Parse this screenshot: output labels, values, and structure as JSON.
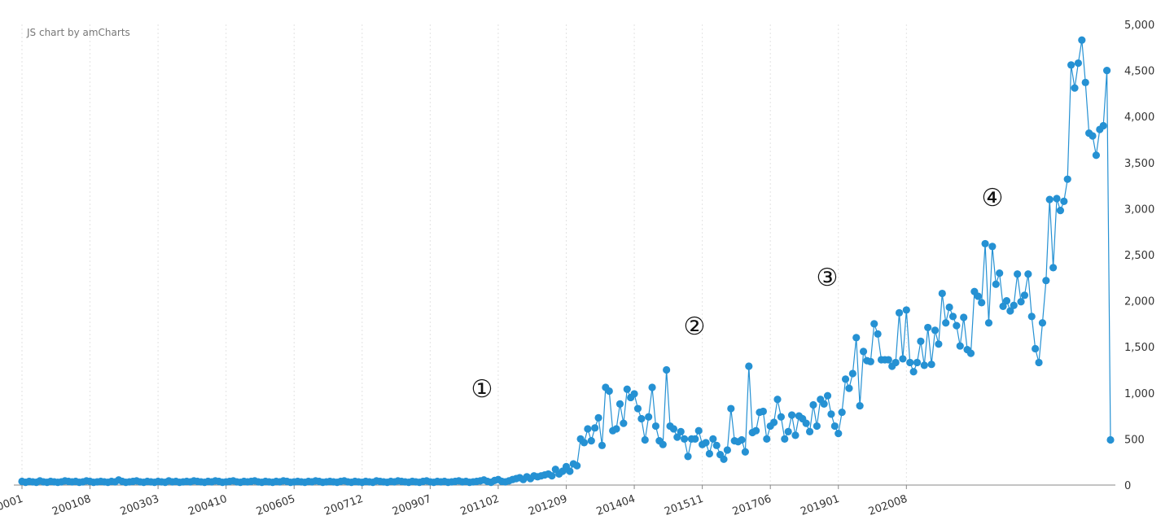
{
  "credit": "JS chart by amCharts",
  "colors": {
    "series": "#2591d3",
    "grid": "#e2e2e2",
    "axis": "#888888"
  },
  "chart_data": {
    "type": "line",
    "title": "",
    "xlabel": "",
    "ylabel": "",
    "ylim": [
      0,
      5000
    ],
    "y_axis_position": "right",
    "grid": "vertical dotted",
    "y_ticks": [
      "0",
      "500",
      "1,000",
      "1,500",
      "2,000",
      "2,500",
      "3,000",
      "3,500",
      "4,000",
      "4,500",
      "5,000"
    ],
    "x_ticks": [
      "200001",
      "200108",
      "200303",
      "200410",
      "200605",
      "200712",
      "200907",
      "201102",
      "201209",
      "201404",
      "201511",
      "201706",
      "201901",
      "202008"
    ],
    "start_period": "200001",
    "series": [
      {
        "values": [
          40,
          30,
          40,
          35,
          30,
          45,
          35,
          30,
          40,
          35,
          30,
          35,
          45,
          40,
          35,
          40,
          30,
          35,
          45,
          40,
          30,
          35,
          40,
          35,
          30,
          40,
          35,
          55,
          40,
          30,
          35,
          40,
          45,
          35,
          30,
          40,
          35,
          30,
          40,
          35,
          30,
          45,
          35,
          40,
          30,
          35,
          40,
          35,
          45,
          40,
          35,
          30,
          40,
          35,
          45,
          40,
          30,
          35,
          40,
          45,
          35,
          30,
          40,
          35,
          40,
          45,
          35,
          30,
          40,
          35,
          30,
          40,
          35,
          45,
          40,
          30,
          35,
          40,
          35,
          30,
          40,
          35,
          45,
          40,
          30,
          35,
          40,
          35,
          30,
          40,
          45,
          35,
          30,
          40,
          35,
          30,
          40,
          35,
          30,
          45,
          40,
          35,
          30,
          40,
          35,
          45,
          40,
          35,
          30,
          40,
          35,
          30,
          40,
          45,
          35,
          30,
          40,
          35,
          40,
          30,
          35,
          40,
          45,
          35,
          40,
          30,
          35,
          40,
          45,
          55,
          40,
          30,
          50,
          60,
          40,
          35,
          45,
          60,
          70,
          80,
          60,
          90,
          70,
          100,
          90,
          100,
          110,
          120,
          100,
          170,
          120,
          150,
          200,
          150,
          230,
          210,
          500,
          460,
          610,
          480,
          620,
          730,
          430,
          1060,
          1020,
          590,
          610,
          880,
          670,
          1040,
          950,
          990,
          830,
          720,
          490,
          740,
          1060,
          640,
          480,
          440,
          1250,
          640,
          610,
          520,
          580,
          500,
          310,
          500,
          500,
          590,
          440,
          460,
          340,
          500,
          430,
          330,
          280,
          380,
          830,
          480,
          470,
          490,
          360,
          1290,
          570,
          590,
          790,
          800,
          500,
          640,
          680,
          930,
          740,
          500,
          580,
          760,
          540,
          750,
          720,
          670,
          580,
          870,
          640,
          930,
          880,
          970,
          770,
          640,
          560,
          790,
          1150,
          1050,
          1210,
          1600,
          860,
          1450,
          1350,
          1340,
          1750,
          1640,
          1360,
          1360,
          1360,
          1290,
          1330,
          1870,
          1370,
          1900,
          1330,
          1230,
          1330,
          1560,
          1300,
          1710,
          1310,
          1680,
          1530,
          2080,
          1760,
          1930,
          1830,
          1730,
          1510,
          1820,
          1470,
          1430,
          2100,
          2050,
          1980,
          2620,
          1760,
          2590,
          2180,
          2300,
          1940,
          2000,
          1890,
          1950,
          2290,
          1990,
          2060,
          2290,
          1830,
          1480,
          1330,
          1760,
          2220,
          3100,
          2360,
          3110,
          2980,
          3080,
          3320,
          4560,
          4310,
          4580,
          4830,
          4370,
          3820,
          3790,
          3580,
          3860,
          3900,
          4500,
          490
        ]
      }
    ],
    "annotations": [
      "①",
      "②",
      "③",
      "④"
    ]
  }
}
